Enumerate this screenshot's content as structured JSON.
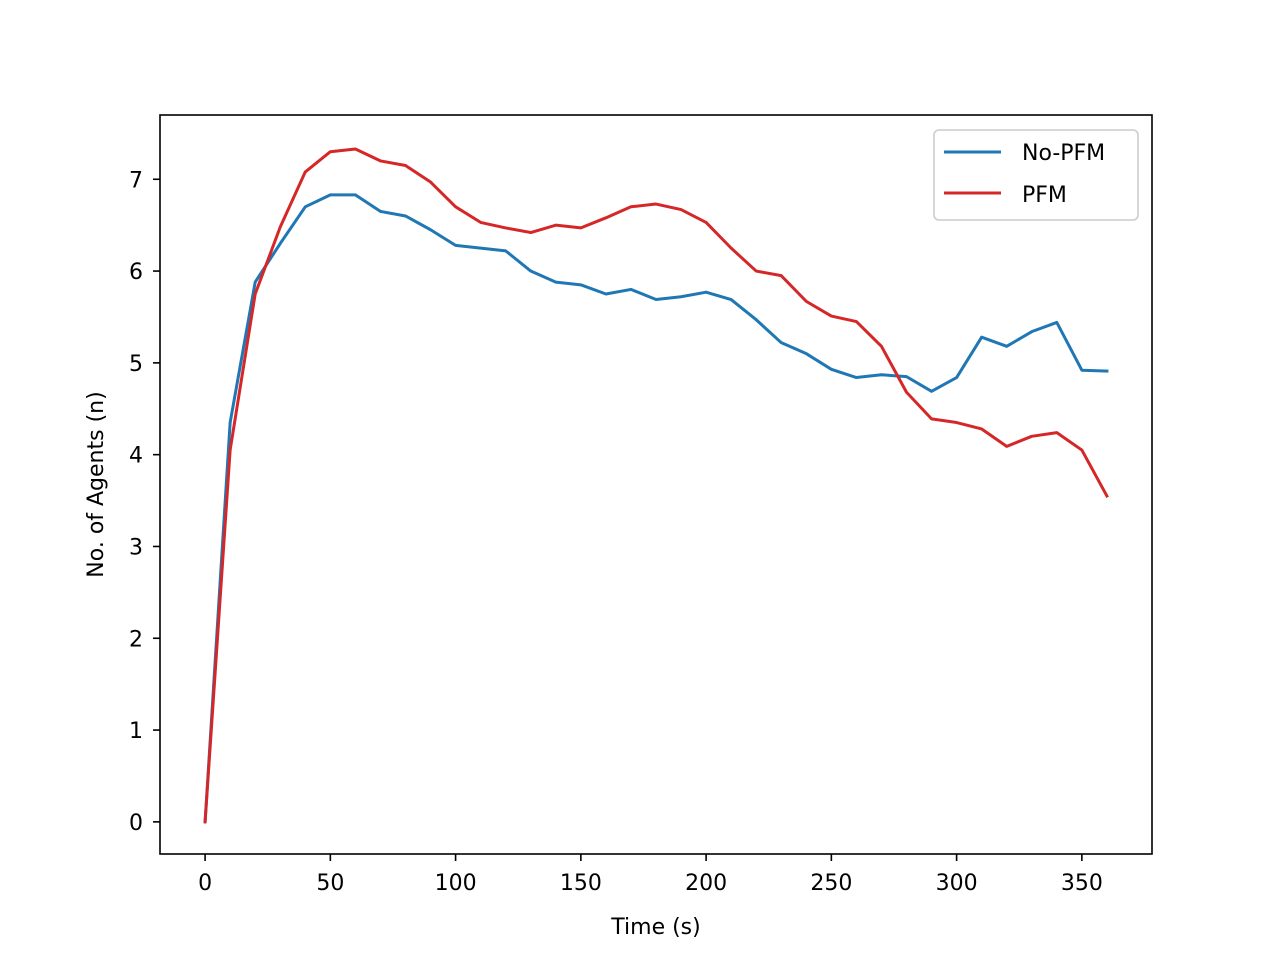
{
  "chart_data": {
    "type": "line",
    "title": "",
    "xlabel": "Time (s)",
    "ylabel": "No. of Agents (n)",
    "xlim": [
      -18,
      378
    ],
    "ylim": [
      -0.35,
      7.7
    ],
    "xticks": [
      0,
      50,
      100,
      150,
      200,
      250,
      300,
      350
    ],
    "yticks": [
      0,
      1,
      2,
      3,
      4,
      5,
      6,
      7
    ],
    "grid": false,
    "legend_position": "top-right",
    "x": [
      0,
      10,
      20,
      30,
      40,
      50,
      60,
      70,
      80,
      90,
      100,
      110,
      120,
      130,
      140,
      150,
      160,
      170,
      180,
      190,
      200,
      210,
      220,
      230,
      240,
      250,
      260,
      270,
      280,
      290,
      300,
      310,
      320,
      330,
      340,
      350,
      360
    ],
    "series": [
      {
        "name": "No-PFM",
        "color": "#1f77b4",
        "values": [
          0,
          4.35,
          5.88,
          6.3,
          6.7,
          6.83,
          6.83,
          6.65,
          6.6,
          6.45,
          6.28,
          6.25,
          6.22,
          6.0,
          5.88,
          5.85,
          5.75,
          5.8,
          5.69,
          5.72,
          5.77,
          5.69,
          5.47,
          5.22,
          5.1,
          4.93,
          4.84,
          4.87,
          4.85,
          4.69,
          4.84,
          5.28,
          5.18,
          5.34,
          5.44,
          4.92,
          4.91
        ]
      },
      {
        "name": "PFM",
        "color": "#d62728",
        "values": [
          0,
          4.05,
          5.75,
          6.48,
          7.08,
          7.3,
          7.33,
          7.2,
          7.15,
          6.97,
          6.7,
          6.53,
          6.47,
          6.42,
          6.5,
          6.47,
          6.58,
          6.7,
          6.73,
          6.67,
          6.53,
          6.25,
          6.0,
          5.95,
          5.67,
          5.51,
          5.45,
          5.18,
          4.68,
          4.39,
          4.35,
          4.28,
          4.09,
          4.2,
          4.24,
          4.05,
          3.55
        ]
      }
    ]
  }
}
